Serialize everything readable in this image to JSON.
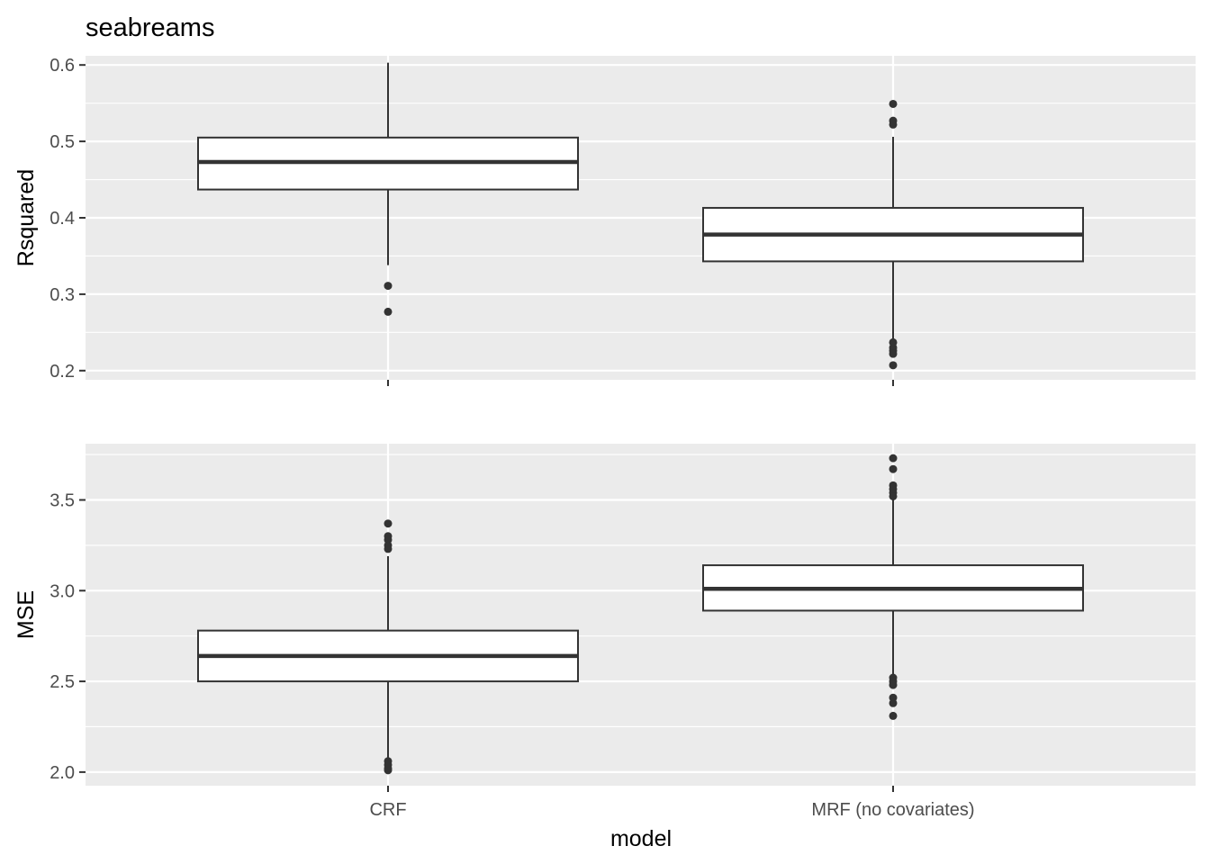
{
  "chart_data": {
    "type": "box",
    "title": "seabreams",
    "xlabel": "model",
    "categories": [
      "CRF",
      "MRF (no covariates)"
    ],
    "grid": true,
    "legend": "none",
    "colors": {
      "panel_background": "#ebebeb",
      "grid": "#ffffff",
      "box_fill": "#ffffff",
      "box_line": "#333333",
      "tick_text": "#4d4d4d"
    },
    "panels": [
      {
        "ylabel": "Rsquared",
        "ylim": [
          0.188,
          0.612
        ],
        "yticks": [
          0.2,
          0.3,
          0.4,
          0.5,
          0.6
        ],
        "ytick_labels": [
          "0.2",
          "0.3",
          "0.4",
          "0.5",
          "0.6"
        ],
        "boxes": [
          {
            "category": "CRF",
            "whisker_low": 0.338,
            "q1": 0.437,
            "median": 0.473,
            "q3": 0.505,
            "whisker_high": 0.603,
            "outliers": [
              0.311,
              0.277
            ]
          },
          {
            "category": "MRF (no covariates)",
            "whisker_low": 0.24,
            "q1": 0.343,
            "median": 0.378,
            "q3": 0.413,
            "whisker_high": 0.506,
            "outliers": [
              0.549,
              0.527,
              0.522,
              0.237,
              0.23,
              0.226,
              0.222,
              0.207
            ]
          }
        ]
      },
      {
        "ylabel": "MSE",
        "ylim": [
          1.925,
          3.81
        ],
        "yticks": [
          2.0,
          2.5,
          3.0,
          3.5
        ],
        "ytick_labels": [
          "2.0",
          "2.5",
          "3.0",
          "3.5"
        ],
        "boxes": [
          {
            "category": "CRF",
            "whisker_low": 2.08,
            "q1": 2.5,
            "median": 2.64,
            "q3": 2.78,
            "whisker_high": 3.19,
            "outliers": [
              3.37,
              3.3,
              3.28,
              3.25,
              3.23,
              2.06,
              2.04,
              2.02,
              2.01
            ]
          },
          {
            "category": "MRF (no covariates)",
            "whisker_low": 2.53,
            "q1": 2.89,
            "median": 3.01,
            "q3": 3.14,
            "whisker_high": 3.5,
            "outliers": [
              3.73,
              3.67,
              3.58,
              3.56,
              3.54,
              3.52,
              2.52,
              2.5,
              2.48,
              2.41,
              2.38,
              2.31
            ]
          }
        ]
      }
    ]
  }
}
